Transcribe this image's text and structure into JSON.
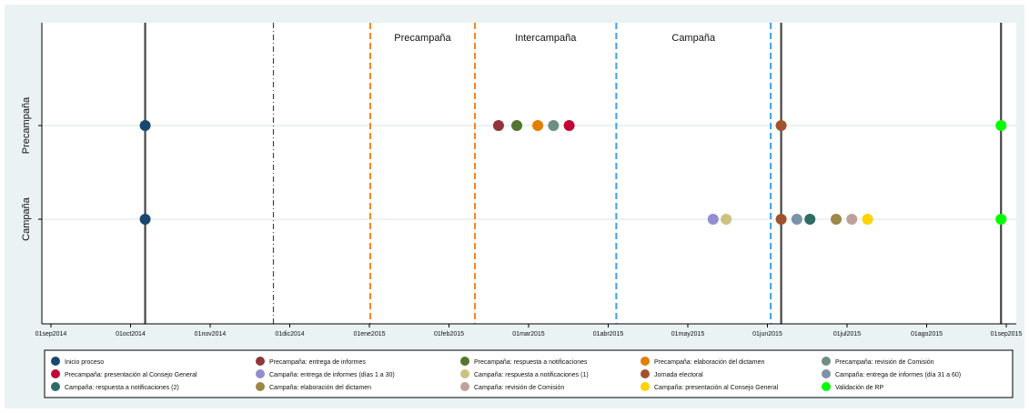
{
  "chart_data": {
    "type": "scatter",
    "y_categories": [
      "Precampaña",
      "Campaña"
    ],
    "x_ticks": [
      "01sep2014",
      "01oct2014",
      "01nov2014",
      "01dic2014",
      "01ene2015",
      "01feb2015",
      "01mar2015",
      "01abr2015",
      "01may2015",
      "01jun2015",
      "01jul2015",
      "01ago2015",
      "01sep2015"
    ],
    "xlim": [
      "2014-08-26",
      "2015-09-03"
    ],
    "grid": "horizontal",
    "legend_position": "bottom",
    "periods": [
      {
        "label": "Precampaña",
        "start": "2015-01-01",
        "end": "2015-02-10"
      },
      {
        "label": "Intercampaña",
        "start": "2015-02-10",
        "end": "2015-04-05"
      },
      {
        "label": "Campaña",
        "start": "2015-04-05",
        "end": "2015-06-03"
      }
    ],
    "vlines": [
      {
        "date": "2014-10-07",
        "style": "solid",
        "color": "#444444"
      },
      {
        "date": "2014-11-25",
        "style": "dashdot",
        "color": "#444444"
      },
      {
        "date": "2015-01-01",
        "style": "dash",
        "color": "#f58518"
      },
      {
        "date": "2015-02-10",
        "style": "dash",
        "color": "#f58518"
      },
      {
        "date": "2015-04-05",
        "style": "dash",
        "color": "#3aa0f3"
      },
      {
        "date": "2015-06-03",
        "style": "dash",
        "color": "#3aa0f3"
      },
      {
        "date": "2015-06-07",
        "style": "solid",
        "color": "#444444"
      },
      {
        "date": "2015-08-30",
        "style": "solid",
        "color": "#444444"
      }
    ],
    "series": [
      {
        "name": "Inicio proceso",
        "color": "#1a476f",
        "points": [
          {
            "x": "2014-10-07",
            "y": "Precampaña"
          },
          {
            "x": "2014-10-07",
            "y": "Campaña"
          }
        ]
      },
      {
        "name": "Precampaña: entrega de informes",
        "color": "#90353b",
        "points": [
          {
            "x": "2015-02-19",
            "y": "Precampaña"
          }
        ]
      },
      {
        "name": "Precampaña: respuesta a notificaciones",
        "color": "#55752f",
        "points": [
          {
            "x": "2015-02-26",
            "y": "Precampaña"
          }
        ]
      },
      {
        "name": "Precampaña: elaboración del dictamen",
        "color": "#e37e00",
        "points": [
          {
            "x": "2015-03-06",
            "y": "Precampaña"
          }
        ]
      },
      {
        "name": "Precampaña: revisión de Comisión",
        "color": "#6e8e84",
        "points": [
          {
            "x": "2015-03-12",
            "y": "Precampaña"
          }
        ]
      },
      {
        "name": "Precampaña: presentación al Consejo General",
        "color": "#c10534",
        "points": [
          {
            "x": "2015-03-18",
            "y": "Precampaña"
          }
        ]
      },
      {
        "name": "Campaña: entrega de informes (días 1 a 30)",
        "color": "#938dd2",
        "points": [
          {
            "x": "2015-05-12",
            "y": "Campaña"
          }
        ]
      },
      {
        "name": "Campaña: respuesta a notificaciones (1)",
        "color": "#cac27e",
        "points": [
          {
            "x": "2015-05-17",
            "y": "Campaña"
          }
        ]
      },
      {
        "name": "Jornada electoral",
        "color": "#a0522d",
        "points": [
          {
            "x": "2015-06-07",
            "y": "Precampaña"
          },
          {
            "x": "2015-06-07",
            "y": "Campaña"
          }
        ]
      },
      {
        "name": "Campaña: entrega de informes (día 31 a 60)",
        "color": "#7b92a8",
        "points": [
          {
            "x": "2015-06-13",
            "y": "Campaña"
          }
        ]
      },
      {
        "name": "Campaña: respuesta a notificaciones (2)",
        "color": "#2d6d66",
        "points": [
          {
            "x": "2015-06-18",
            "y": "Campaña"
          }
        ]
      },
      {
        "name": "Campaña: elaboración del dictamen",
        "color": "#9c8847",
        "points": [
          {
            "x": "2015-06-28",
            "y": "Campaña"
          }
        ]
      },
      {
        "name": "Campaña: revisión de Comisión",
        "color": "#bfa19c",
        "points": [
          {
            "x": "2015-07-04",
            "y": "Campaña"
          }
        ]
      },
      {
        "name": "Campaña: presentación al Consejo General",
        "color": "#ffd200",
        "points": [
          {
            "x": "2015-07-10",
            "y": "Campaña"
          }
        ]
      },
      {
        "name": "Validación de RP",
        "color": "#00ff00",
        "points": [
          {
            "x": "2015-08-30",
            "y": "Precampaña"
          },
          {
            "x": "2015-08-30",
            "y": "Campaña"
          }
        ]
      }
    ]
  }
}
